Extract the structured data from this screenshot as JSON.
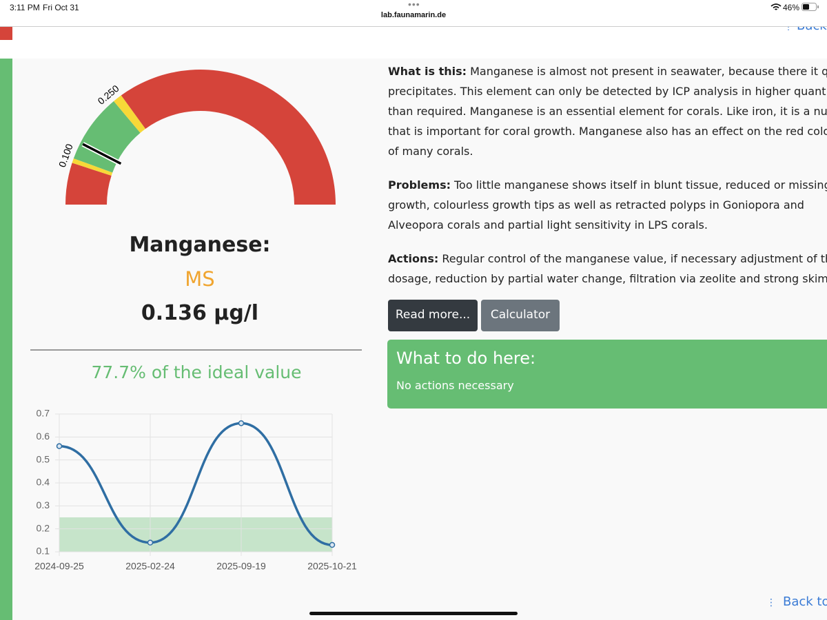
{
  "status_bar": {
    "time": "3:11 PM",
    "date": "Fri Oct 31",
    "url": "lab.faunamarin.de",
    "battery": "46%"
  },
  "nav": {
    "back_top": "Back to",
    "back_bottom": "Back to"
  },
  "gauge": {
    "min": 0,
    "max": 0.9,
    "value": 0.136,
    "value_label": "0.136 µg/l",
    "segments": [
      {
        "from": 0,
        "to": 0.09,
        "color": "#d5443a"
      },
      {
        "from": 0.09,
        "to": 0.1,
        "color": "#f7d838"
      },
      {
        "from": 0.1,
        "to": 0.25,
        "color": "#66bd73"
      },
      {
        "from": 0.25,
        "to": 0.27,
        "color": "#f7d838"
      },
      {
        "from": 0.27,
        "to": 0.9,
        "color": "#d5443a"
      }
    ],
    "ticks": [
      {
        "value": 0.1,
        "label": "0.100"
      },
      {
        "value": 0.25,
        "label": "0.250"
      }
    ]
  },
  "element": {
    "name": "Manganese:",
    "code": "MS",
    "ideal": "77.7% of the ideal value"
  },
  "info": [
    {
      "label": "What is this:",
      "lines": [
        "Manganese is almost not present in seawater, because there it qui",
        "precipitates. This element can only be detected by ICP analysis in higher quantit",
        "than required. Manganese is an essential element for corals. Like iron, it is a nutr",
        "that is important for coral growth. Manganese also has an effect on the red colo",
        "of many corals."
      ]
    },
    {
      "label": "Problems:",
      "lines": [
        "Too little manganese shows itself in blunt tissue, reduced or missing",
        "growth, colourless growth tips as well as retracted polyps in Goniopora and",
        "Alveopora corals and partial light sensitivity in LPS corals."
      ]
    },
    {
      "label": "Actions:",
      "lines": [
        "Regular control of the manganese value, if necessary adjustment of the",
        "dosage, reduction by partial water change, filtration via zeolite and strong skimm"
      ]
    }
  ],
  "buttons": {
    "read_more": "Read more...",
    "calculator": "Calculator"
  },
  "todo": {
    "title": "What to do here:",
    "text": "No actions necessary"
  },
  "chart_data": {
    "type": "line",
    "categories": [
      "2024-09-25",
      "2025-02-24",
      "2025-09-19",
      "2025-10-21"
    ],
    "series": [
      {
        "color": "#2f6ea3",
        "values": [
          0.56,
          0.14,
          0.66,
          0.13
        ]
      }
    ],
    "ideal_range": [
      0.1,
      0.25
    ],
    "ideal_color": "#66bd73",
    "ylim": [
      0.1,
      0.7
    ],
    "yticks": [
      0.1,
      0.2,
      0.3,
      0.4,
      0.5,
      0.6,
      0.7
    ],
    "grid": true
  }
}
